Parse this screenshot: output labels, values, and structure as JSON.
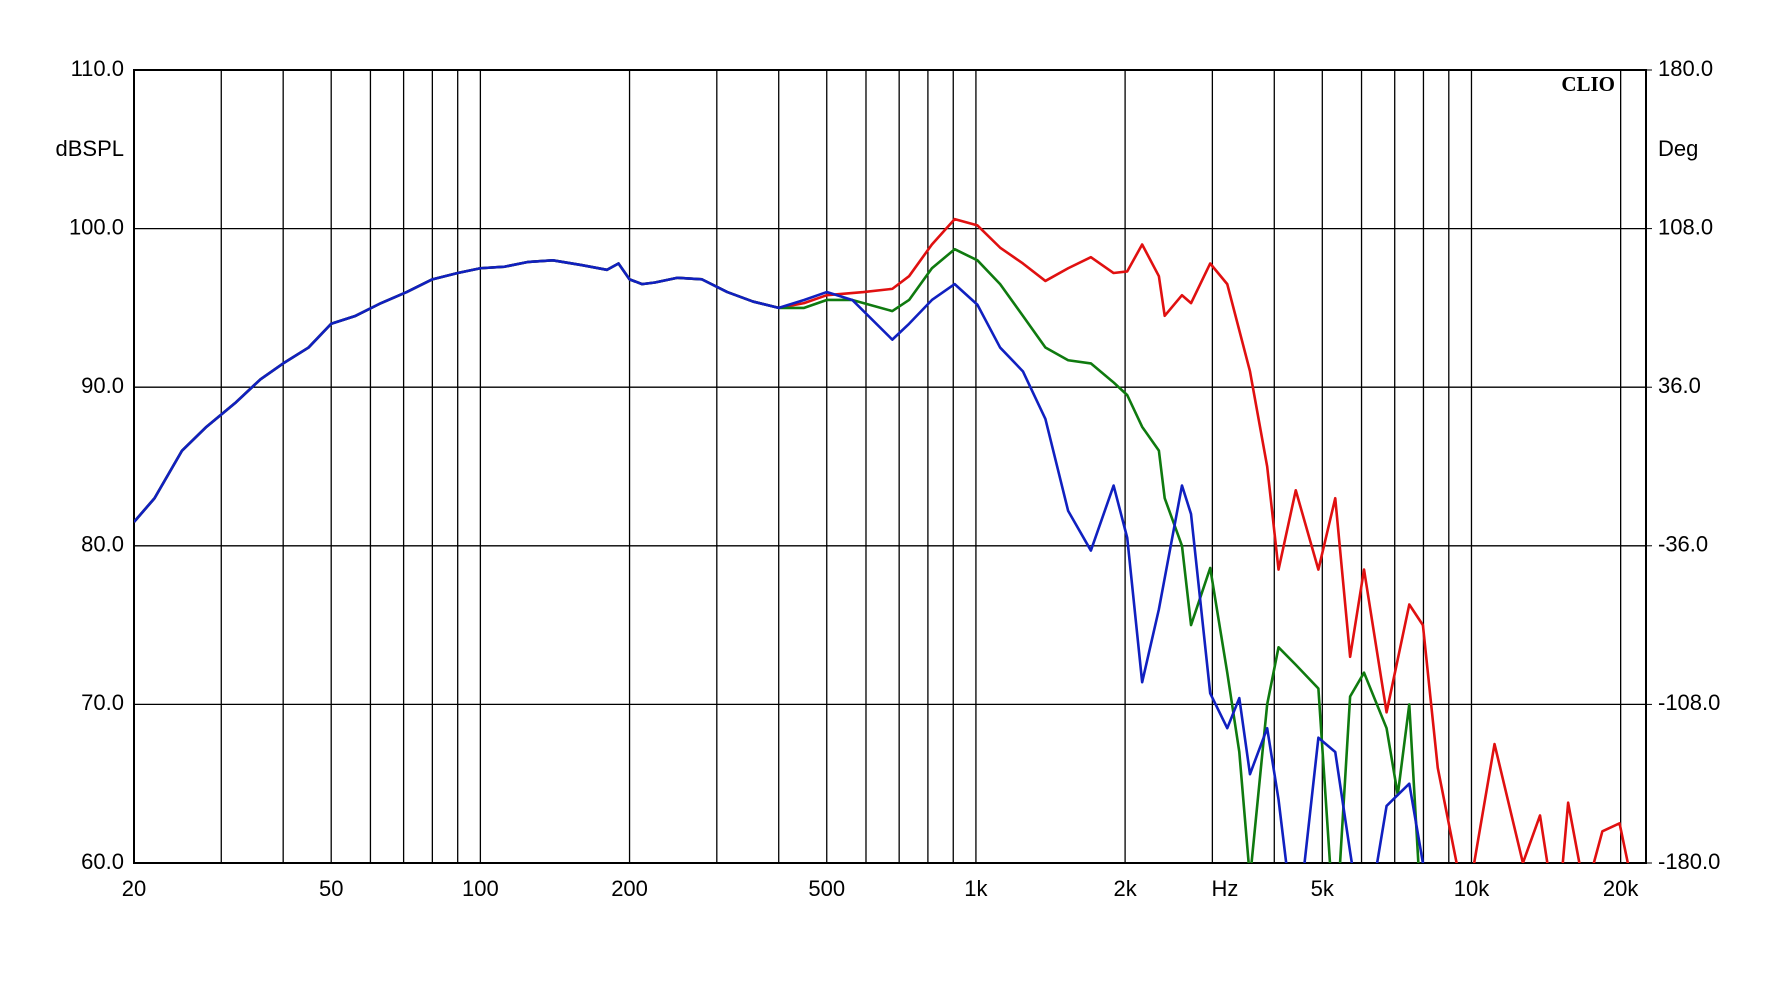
{
  "chart_data": {
    "type": "line",
    "ylabel": "dBSPL",
    "y2label": "Deg",
    "xlabel": "Hz",
    "annotation": "CLIO",
    "log_x": true,
    "grid": true,
    "xlim": [
      20,
      22500
    ],
    "xticks": [
      20,
      50,
      100,
      200,
      500,
      {
        "value": 1000,
        "label": "1k"
      },
      {
        "value": 2000,
        "label": "2k"
      },
      {
        "value": 5000,
        "label": "5k"
      },
      {
        "value": 10000,
        "label": "10k"
      },
      {
        "value": 20000,
        "label": "20k"
      }
    ],
    "xminor": [
      30,
      40,
      60,
      70,
      80,
      90,
      300,
      400,
      600,
      700,
      800,
      900,
      3000,
      4000,
      6000,
      7000,
      8000,
      9000
    ],
    "ylim": [
      60,
      110
    ],
    "yticks": [
      {
        "value": 60,
        "label": "60.0"
      },
      {
        "value": 70,
        "label": "70.0"
      },
      {
        "value": 80,
        "label": "80.0"
      },
      {
        "value": 90,
        "label": "90.0"
      },
      {
        "value": 100,
        "label": "100.0"
      },
      {
        "value": 110,
        "label": "110.0"
      }
    ],
    "y2lim": [
      -180,
      180
    ],
    "y2ticks": [
      {
        "value": -180,
        "label": "-180.0"
      },
      {
        "value": -108,
        "label": "-108.0"
      },
      {
        "value": -36,
        "label": "-36.0"
      },
      {
        "value": 36,
        "label": "36.0"
      },
      {
        "value": 108,
        "label": "108.0"
      },
      {
        "value": 180,
        "label": "180.0"
      }
    ],
    "series": [
      {
        "color": "#e01010",
        "x": [
          20,
          22,
          25,
          28,
          32,
          36,
          40,
          45,
          50,
          56,
          63,
          71,
          80,
          90,
          100,
          112,
          125,
          140,
          160,
          180,
          190,
          200,
          212,
          225,
          250,
          280,
          315,
          355,
          400,
          450,
          500,
          593,
          678,
          733,
          815,
          906,
          1007,
          1119,
          1244,
          1381,
          1535,
          1706,
          1896,
          2020,
          2165,
          2340,
          2404,
          2605,
          2717,
          2970,
          3215,
          3573,
          3870,
          4080,
          4420,
          4910,
          5310,
          5690,
          6070,
          6740,
          7490,
          7980,
          8550,
          9750,
          11130,
          12700,
          13750,
          14890,
          15670,
          16970,
          18370,
          19900,
          21000
        ],
        "values": [
          81.5,
          83,
          86,
          87.5,
          89,
          90.5,
          91.5,
          92.5,
          94,
          94.5,
          95.3,
          96,
          96.8,
          97.2,
          97.5,
          97.6,
          97.9,
          98,
          97.7,
          97.4,
          97.8,
          96.8,
          96.5,
          96.6,
          96.9,
          96.8,
          96,
          95.4,
          95,
          95.3,
          95.8,
          96,
          96.2,
          97,
          99,
          100.6,
          100.2,
          98.8,
          97.8,
          96.7,
          97.5,
          98.2,
          97.2,
          97.3,
          99,
          97,
          94.5,
          95.8,
          95.3,
          97.8,
          96.5,
          91,
          85,
          78.5,
          83.5,
          78.5,
          83,
          73,
          78.5,
          69.5,
          76.3,
          75,
          66,
          57,
          67.5,
          60,
          63,
          56,
          63.8,
          58,
          62,
          62.5,
          59
        ]
      },
      {
        "color": "#0f7a0f",
        "x": [
          20,
          22,
          25,
          28,
          32,
          36,
          40,
          45,
          50,
          56,
          63,
          71,
          80,
          90,
          100,
          112,
          125,
          140,
          160,
          180,
          190,
          200,
          212,
          225,
          250,
          280,
          315,
          355,
          400,
          450,
          500,
          563,
          678,
          733,
          815,
          906,
          1007,
          1119,
          1244,
          1381,
          1535,
          1706,
          1896,
          2020,
          2165,
          2340,
          2404,
          2605,
          2717,
          2970,
          3215,
          3400,
          3573,
          3870,
          4080,
          4420,
          4910,
          5310,
          5690,
          6070,
          6740,
          7100,
          7490,
          7980
        ],
        "values": [
          81.5,
          83,
          86,
          87.5,
          89,
          90.5,
          91.5,
          92.5,
          94,
          94.5,
          95.3,
          96,
          96.8,
          97.2,
          97.5,
          97.6,
          97.9,
          98,
          97.7,
          97.4,
          97.8,
          96.8,
          96.5,
          96.6,
          96.9,
          96.8,
          96,
          95.4,
          95,
          95,
          95.5,
          95.5,
          94.8,
          95.5,
          97.5,
          98.7,
          98,
          96.5,
          94.5,
          92.5,
          91.7,
          91.5,
          90.3,
          89.5,
          87.5,
          86,
          83,
          80,
          75,
          78.6,
          72,
          67,
          59,
          70,
          73.6,
          72.5,
          71,
          55,
          70.5,
          72,
          68.5,
          64.3,
          70,
          55
        ]
      },
      {
        "color": "#1020c0",
        "x": [
          20,
          22,
          25,
          28,
          32,
          36,
          40,
          45,
          50,
          56,
          63,
          71,
          80,
          90,
          100,
          112,
          125,
          140,
          160,
          180,
          190,
          200,
          212,
          225,
          250,
          280,
          315,
          355,
          400,
          450,
          500,
          563,
          678,
          733,
          815,
          906,
          1007,
          1119,
          1244,
          1381,
          1535,
          1706,
          1896,
          2020,
          2165,
          2340,
          2605,
          2717,
          2970,
          3215,
          3400,
          3573,
          3870,
          4080,
          4420,
          4910,
          5310,
          5690,
          6070,
          6740,
          7490,
          7980,
          8550
        ],
        "values": [
          81.5,
          83,
          86,
          87.5,
          89,
          90.5,
          91.5,
          92.5,
          94,
          94.5,
          95.3,
          96,
          96.8,
          97.2,
          97.5,
          97.6,
          97.9,
          98,
          97.7,
          97.4,
          97.8,
          96.8,
          96.5,
          96.6,
          96.9,
          96.8,
          96,
          95.4,
          95,
          95.5,
          96,
          95.5,
          93,
          94,
          95.5,
          96.5,
          95.2,
          92.5,
          91,
          88,
          82.2,
          79.7,
          83.8,
          80.5,
          71.4,
          76,
          83.8,
          82,
          70.7,
          68.5,
          70.4,
          65.6,
          68.5,
          64,
          55,
          67.9,
          67,
          60.7,
          55,
          63.6,
          65,
          60,
          55
        ]
      }
    ]
  }
}
